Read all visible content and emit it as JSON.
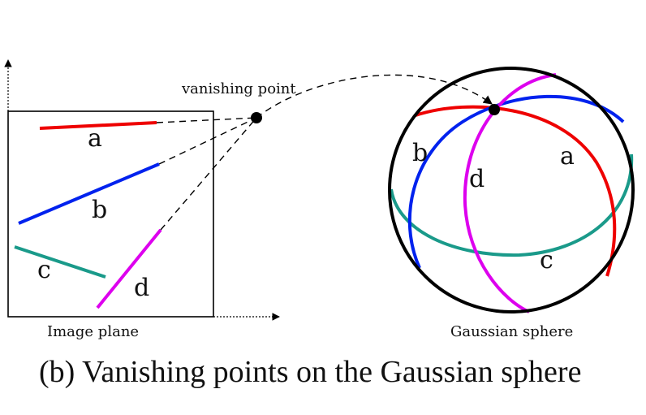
{
  "labels": {
    "vanishing_point": "vanishing point",
    "image_plane": "Image plane",
    "gaussian_sphere": "Gaussian sphere",
    "caption": "(b) Vanishing points on the Gaussian sphere"
  },
  "lines": {
    "a": "a",
    "b": "b",
    "c": "c",
    "d": "d"
  },
  "great_circles": {
    "a": "a",
    "b": "b",
    "c": "c",
    "d": "d"
  },
  "colors": {
    "a": "#ee0000",
    "b": "#0022ee",
    "c": "#1a9a8a",
    "d": "#dd00ee",
    "ink": "#000000"
  }
}
